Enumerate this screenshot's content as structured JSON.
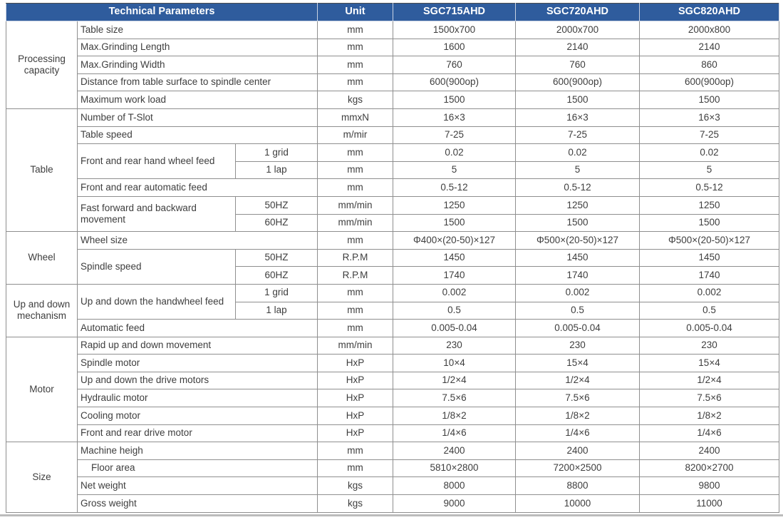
{
  "header": {
    "title": "Technical Parameters",
    "unit_label": "Unit",
    "models": [
      "SGC715AHD",
      "SGC720AHD",
      "SGC820AHD"
    ]
  },
  "colors": {
    "header_bg": "#2F5C9D",
    "header_text": "#FFFFFF",
    "header_border": "#C9D2E2",
    "row_alt_bg": "#DBE3F2",
    "row_bg": "#FFFFFF",
    "grid_line": "#8F8F8F",
    "section_line": "#5A5A5A",
    "outer_border": "#4D4D4D",
    "text": "#3E3E3E"
  },
  "sections": [
    {
      "category": "Processing capacity",
      "rows": [
        {
          "label": "Table size",
          "unit": "mm",
          "values": [
            "1500x700",
            "2000x700",
            "2000x800"
          ]
        },
        {
          "label": "Max.Grinding Length",
          "unit": "mm",
          "values": [
            "1600",
            "2140",
            "2140"
          ]
        },
        {
          "label": "Max.Grinding Width",
          "unit": "mm",
          "values": [
            "760",
            "760",
            "860"
          ]
        },
        {
          "label": "Distance from table surface to spindle center",
          "unit": "mm",
          "values": [
            "600(900op)",
            "600(900op)",
            "600(900op)"
          ]
        },
        {
          "label": "Maximum work load",
          "unit": "kgs",
          "values": [
            "1500",
            "1500",
            "1500"
          ]
        }
      ]
    },
    {
      "category": "Table",
      "rows": [
        {
          "label": "Number of T-Slot",
          "unit": "mmxN",
          "values": [
            "16×3",
            "16×3",
            "16×3"
          ]
        },
        {
          "label": "Table speed",
          "unit": "m/mir",
          "values": [
            "7-25",
            "7-25",
            "7-25"
          ]
        },
        {
          "label": "Front and rear hand wheel feed",
          "subrows": [
            {
              "sub": "1 grid",
              "unit": "mm",
              "values": [
                "0.02",
                "0.02",
                "0.02"
              ]
            },
            {
              "sub": "1 lap",
              "unit": "mm",
              "values": [
                "5",
                "5",
                "5"
              ]
            }
          ]
        },
        {
          "label": "Front and rear automatic feed",
          "unit": "mm",
          "values": [
            "0.5-12",
            "0.5-12",
            "0.5-12"
          ]
        },
        {
          "label": "Fast forward and backward movement",
          "subrows": [
            {
              "sub": "50HZ",
              "unit": "mm/min",
              "values": [
                "1250",
                "1250",
                "1250"
              ]
            },
            {
              "sub": "60HZ",
              "unit": "mm/min",
              "values": [
                "1500",
                "1500",
                "1500"
              ]
            }
          ]
        }
      ]
    },
    {
      "category": "Wheel",
      "rows": [
        {
          "label": "Wheel size",
          "unit": "mm",
          "values": [
            "Φ400×(20-50)×127",
            "Φ500×(20-50)×127",
            "Φ500×(20-50)×127"
          ]
        },
        {
          "label": "Spindle speed",
          "subrows": [
            {
              "sub": "50HZ",
              "unit": "R.P.M",
              "values": [
                "1450",
                "1450",
                "1450"
              ]
            },
            {
              "sub": "60HZ",
              "unit": "R.P.M",
              "values": [
                "1740",
                "1740",
                "1740"
              ]
            }
          ]
        }
      ]
    },
    {
      "category": "Up and down mechanism",
      "rows": [
        {
          "label": "Up and down the handwheel feed",
          "subrows": [
            {
              "sub": "1 grid",
              "unit": "mm",
              "values": [
                "0.002",
                "0.002",
                "0.002"
              ]
            },
            {
              "sub": "1 lap",
              "unit": "mm",
              "values": [
                "0.5",
                "0.5",
                "0.5"
              ]
            }
          ]
        },
        {
          "label": "Automatic feed",
          "unit": "mm",
          "values": [
            "0.005-0.04",
            "0.005-0.04",
            "0.005-0.04"
          ]
        }
      ]
    },
    {
      "category": "Motor",
      "rows": [
        {
          "label": "Rapid up and down movement",
          "unit": "mm/min",
          "values": [
            "230",
            "230",
            "230"
          ]
        },
        {
          "label": "Spindle motor",
          "unit": "HxP",
          "values": [
            "10×4",
            "15×4",
            "15×4"
          ]
        },
        {
          "label": "Up and down the drive motors",
          "unit": "HxP",
          "values": [
            "1/2×4",
            "1/2×4",
            "1/2×4"
          ]
        },
        {
          "label": "Hydraulic motor",
          "unit": "HxP",
          "values": [
            "7.5×6",
            "7.5×6",
            "7.5×6"
          ]
        },
        {
          "label": "Cooling motor",
          "unit": "HxP",
          "values": [
            "1/8×2",
            "1/8×2",
            "1/8×2"
          ]
        },
        {
          "label": "Front and rear drive motor",
          "unit": "HxP",
          "values": [
            "1/4×6",
            "1/4×6",
            "1/4×6"
          ]
        }
      ]
    },
    {
      "category": "Size",
      "rows": [
        {
          "label": "Machine heigh",
          "unit": "mm",
          "values": [
            "2400",
            "2400",
            "2400"
          ]
        },
        {
          "label": "Floor area",
          "indent": true,
          "unit": "mm",
          "values": [
            "5810×2800",
            "7200×2500",
            "8200×2700"
          ]
        },
        {
          "label": "Net weight",
          "unit": "kgs",
          "values": [
            "8000",
            "8800",
            "9800"
          ]
        },
        {
          "label": "Gross weight",
          "unit": "kgs",
          "values": [
            "9000",
            "10000",
            "11000"
          ]
        }
      ]
    }
  ]
}
